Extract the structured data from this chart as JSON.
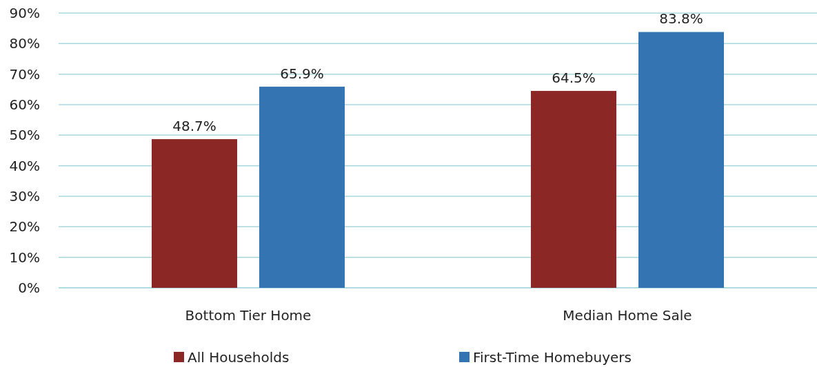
{
  "chart_data": {
    "type": "bar",
    "categories": [
      "Bottom Tier Home",
      "Median Home Sale"
    ],
    "series": [
      {
        "name": "All Households",
        "color": "#8b2826",
        "values": [
          48.7,
          64.5
        ],
        "value_labels": [
          "48.7%",
          "64.5%"
        ]
      },
      {
        "name": "First-Time Homebuyers",
        "color": "#3574b3",
        "values": [
          65.9,
          83.8
        ],
        "value_labels": [
          "65.9%",
          "83.8%"
        ]
      }
    ],
    "ylim": [
      0,
      90
    ],
    "yticks": [
      {
        "value": 0,
        "label": "0%"
      },
      {
        "value": 10,
        "label": "10%"
      },
      {
        "value": 20,
        "label": "20%"
      },
      {
        "value": 30,
        "label": "30%"
      },
      {
        "value": 40,
        "label": "40%"
      },
      {
        "value": 50,
        "label": "50%"
      },
      {
        "value": 60,
        "label": "60%"
      },
      {
        "value": 70,
        "label": "70%"
      },
      {
        "value": 80,
        "label": "80%"
      },
      {
        "value": 90,
        "label": "90%"
      }
    ],
    "grid": "y",
    "legend": "bottom"
  }
}
